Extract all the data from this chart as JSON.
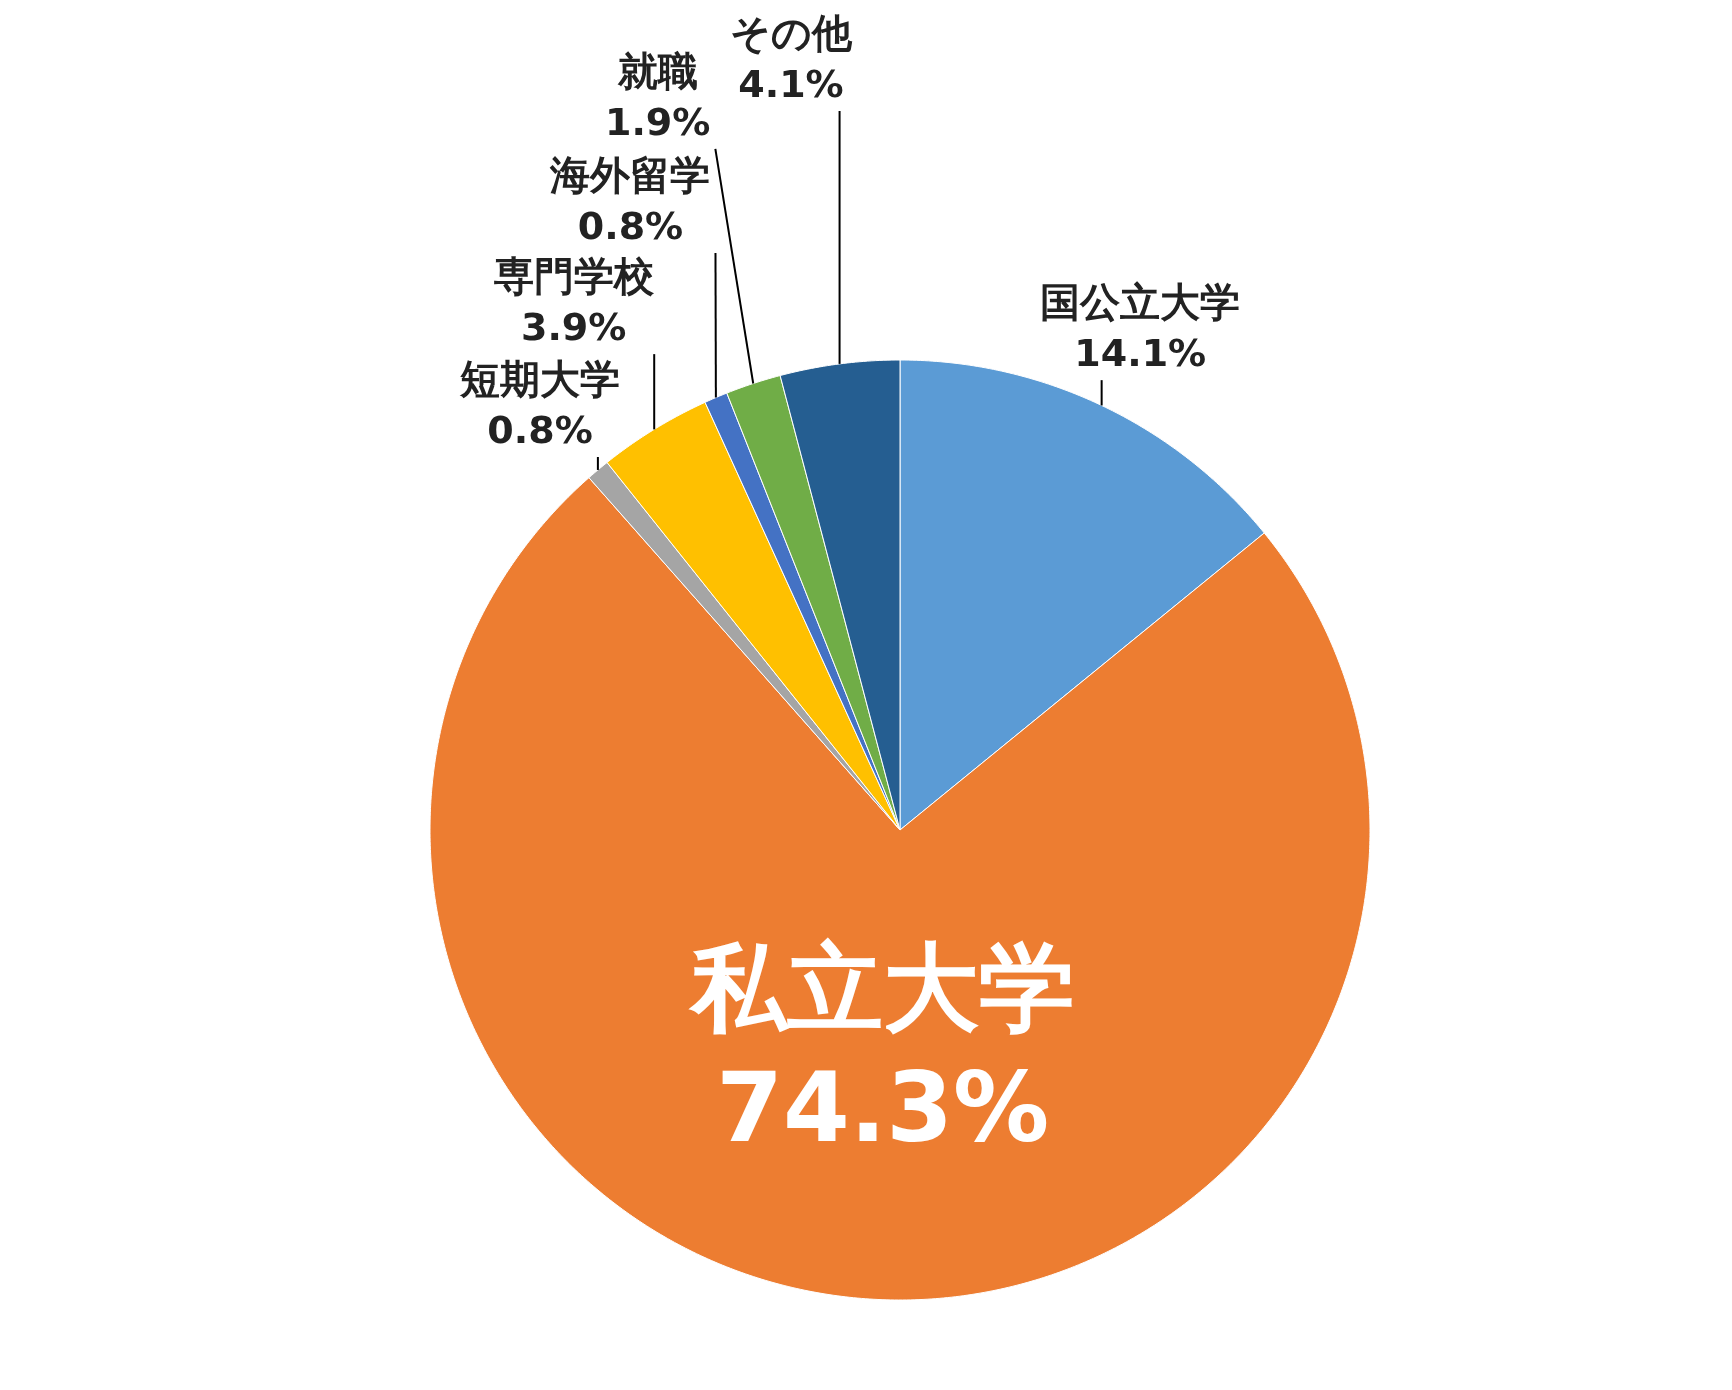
{
  "chart_data": {
    "type": "pie",
    "categories": [
      "国公立大学",
      "私立大学",
      "短期大学",
      "専門学校",
      "海外留学",
      "就職",
      "その他"
    ],
    "values": [
      14.1,
      74.3,
      0.8,
      3.9,
      0.8,
      1.9,
      4.1
    ],
    "colors": [
      "#5b9bd5",
      "#ed7d31",
      "#a5a5a5",
      "#ffc000",
      "#4472c4",
      "#70ad47",
      "#255e91"
    ],
    "value_labels": [
      "14.1%",
      "74.3%",
      "0.8%",
      "3.9%",
      "0.8%",
      "1.9%",
      "4.1%"
    ],
    "legend": false
  }
}
